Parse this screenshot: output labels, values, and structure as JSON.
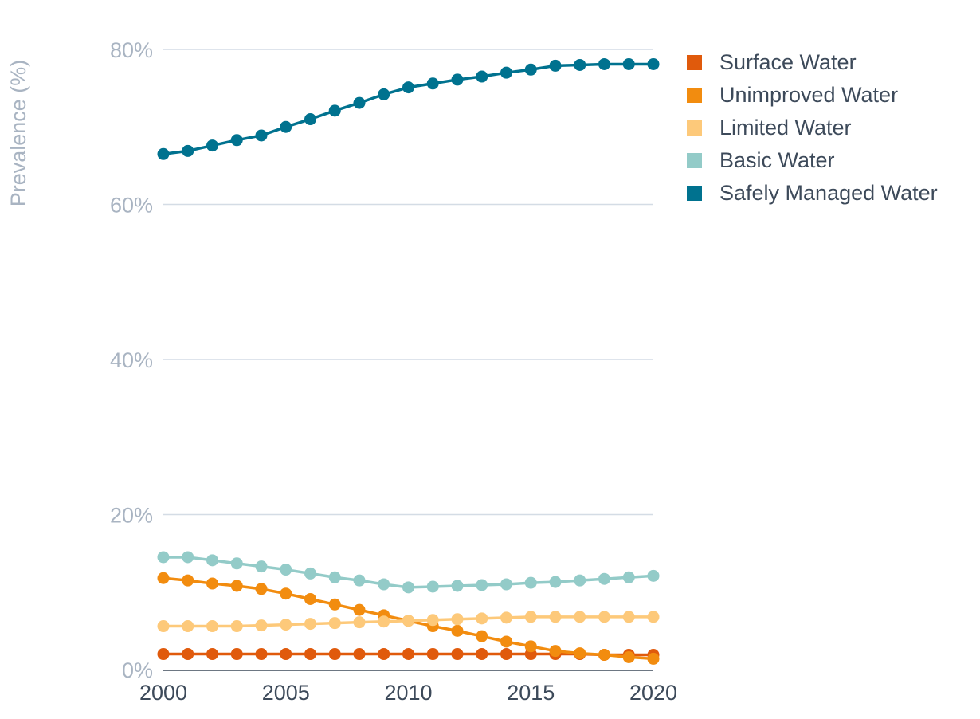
{
  "chart_data": {
    "type": "line",
    "ylabel": "Prevalence (%)",
    "xlabel": "",
    "title": "",
    "ylim": [
      0,
      80
    ],
    "xlim": [
      2000,
      2020
    ],
    "yticks": [
      "0%",
      "20%",
      "40%",
      "60%",
      "80%"
    ],
    "ytick_values": [
      0,
      20,
      40,
      60,
      80
    ],
    "xticks": [
      "2000",
      "2005",
      "2010",
      "2015",
      "2020"
    ],
    "xtick_values": [
      2000,
      2005,
      2010,
      2015,
      2020
    ],
    "grid": true,
    "legend_position": "right",
    "x": [
      2000,
      2001,
      2002,
      2003,
      2004,
      2005,
      2006,
      2007,
      2008,
      2009,
      2010,
      2011,
      2012,
      2013,
      2014,
      2015,
      2016,
      2017,
      2018,
      2019,
      2020
    ],
    "series": [
      {
        "name": "Surface Water",
        "color": "#e05a0c",
        "values": [
          2.0,
          2.0,
          2.0,
          2.0,
          2.0,
          2.0,
          2.0,
          2.0,
          2.0,
          2.0,
          2.0,
          2.0,
          2.0,
          2.0,
          2.0,
          2.0,
          2.0,
          2.0,
          1.9,
          1.9,
          1.9
        ]
      },
      {
        "name": "Unimproved Water",
        "color": "#f28c0f",
        "values": [
          11.8,
          11.5,
          11.1,
          10.8,
          10.4,
          9.8,
          9.1,
          8.4,
          7.7,
          7.0,
          6.3,
          5.6,
          5.0,
          4.3,
          3.6,
          3.0,
          2.4,
          2.1,
          1.9,
          1.6,
          1.4
        ]
      },
      {
        "name": "Limited Water",
        "color": "#fdc97a",
        "values": [
          5.6,
          5.6,
          5.6,
          5.6,
          5.7,
          5.8,
          5.9,
          6.0,
          6.1,
          6.2,
          6.3,
          6.4,
          6.5,
          6.6,
          6.7,
          6.8,
          6.8,
          6.8,
          6.8,
          6.8,
          6.8
        ]
      },
      {
        "name": "Basic Water",
        "color": "#93cbc8",
        "values": [
          14.5,
          14.5,
          14.1,
          13.7,
          13.3,
          12.9,
          12.4,
          11.9,
          11.5,
          11.0,
          10.6,
          10.7,
          10.8,
          10.9,
          11.0,
          11.2,
          11.3,
          11.5,
          11.7,
          11.9,
          12.1
        ]
      },
      {
        "name": "Safely Managed Water",
        "color": "#00728f",
        "values": [
          66.5,
          66.9,
          67.6,
          68.3,
          68.9,
          70.0,
          71.0,
          72.1,
          73.1,
          74.2,
          75.1,
          75.6,
          76.1,
          76.5,
          77.0,
          77.4,
          77.9,
          78.0,
          78.1,
          78.1,
          78.1
        ]
      }
    ]
  }
}
